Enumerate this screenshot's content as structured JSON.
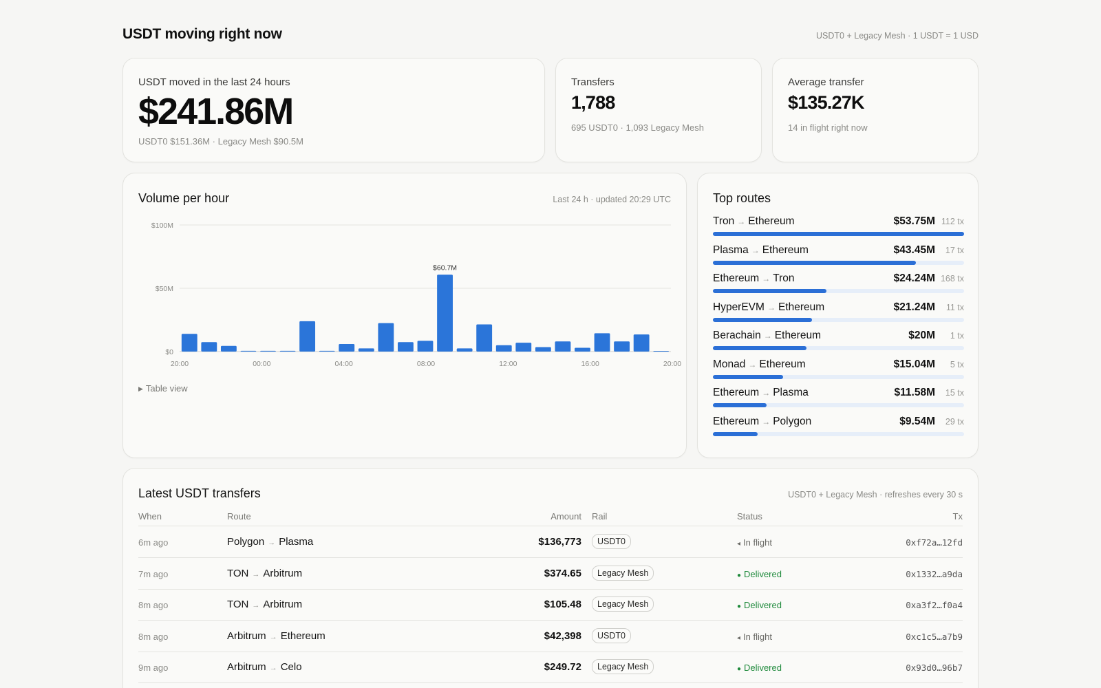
{
  "header": {
    "title": "USDT moving right now",
    "meta": "USDT0 + Legacy Mesh · 1 USDT = 1 USD"
  },
  "kpis": {
    "moved": {
      "label": "USDT moved in the last 24 hours",
      "value": "$241.86M",
      "sub": "USDT0 $151.36M · Legacy Mesh $90.5M"
    },
    "transfers": {
      "label": "Transfers",
      "value": "1,788",
      "sub": "695 USDT0 · 1,093 Legacy Mesh"
    },
    "average": {
      "label": "Average transfer",
      "value": "$135.27K",
      "sub": "14 in flight right now"
    }
  },
  "volume": {
    "title": "Volume per hour",
    "meta": "Last 24 h · updated 20:29 UTC",
    "table_view": "Table view"
  },
  "chart_data": {
    "type": "bar",
    "title": "Volume per hour",
    "y_ticks": [
      "$100M",
      "$50M",
      "$0"
    ],
    "y_tick_values": [
      100,
      50,
      0
    ],
    "ylim": [
      0,
      100
    ],
    "x_ticks": [
      "20:00",
      "00:00",
      "04:00",
      "08:00",
      "12:00",
      "16:00",
      "20:00"
    ],
    "ylabel": "",
    "xlabel": "",
    "unit": "$M",
    "peak_label": "$60.7M",
    "peak_index": 13,
    "values": [
      14,
      7.5,
      4.5,
      0.6,
      0.6,
      0.6,
      24,
      0.6,
      6,
      2.5,
      22.5,
      7.5,
      8.5,
      60.7,
      2.5,
      21.5,
      5,
      7,
      3.5,
      8,
      3,
      14.5,
      8,
      13.5,
      0.4
    ],
    "color": "#2b75d9"
  },
  "routes": {
    "title": "Top routes",
    "items": [
      {
        "from": "Tron",
        "to": "Ethereum",
        "amount": "$53.75M",
        "tx": "112 tx",
        "share": 1.0
      },
      {
        "from": "Plasma",
        "to": "Ethereum",
        "amount": "$43.45M",
        "tx": "17 tx",
        "share": 0.808
      },
      {
        "from": "Ethereum",
        "to": "Tron",
        "amount": "$24.24M",
        "tx": "168 tx",
        "share": 0.451
      },
      {
        "from": "HyperEVM",
        "to": "Ethereum",
        "amount": "$21.24M",
        "tx": "11 tx",
        "share": 0.395
      },
      {
        "from": "Berachain",
        "to": "Ethereum",
        "amount": "$20M",
        "tx": "1 tx",
        "share": 0.372
      },
      {
        "from": "Monad",
        "to": "Ethereum",
        "amount": "$15.04M",
        "tx": "5 tx",
        "share": 0.28
      },
      {
        "from": "Ethereum",
        "to": "Plasma",
        "amount": "$11.58M",
        "tx": "15 tx",
        "share": 0.215
      },
      {
        "from": "Ethereum",
        "to": "Polygon",
        "amount": "$9.54M",
        "tx": "29 tx",
        "share": 0.177
      }
    ]
  },
  "latest": {
    "title": "Latest USDT transfers",
    "meta": "USDT0 + Legacy Mesh · refreshes every 30 s",
    "columns": {
      "when": "When",
      "route": "Route",
      "amount": "Amount",
      "rail": "Rail",
      "status": "Status",
      "tx": "Tx"
    },
    "rows": [
      {
        "when": "6m ago",
        "from": "Polygon",
        "to": "Plasma",
        "amount": "$136,773",
        "rail": "USDT0",
        "status": "In flight",
        "status_kind": "flight",
        "tx": "0xf72a…12fd"
      },
      {
        "when": "7m ago",
        "from": "TON",
        "to": "Arbitrum",
        "amount": "$374.65",
        "rail": "Legacy Mesh",
        "status": "Delivered",
        "status_kind": "delivered",
        "tx": "0x1332…a9da"
      },
      {
        "when": "8m ago",
        "from": "TON",
        "to": "Arbitrum",
        "amount": "$105.48",
        "rail": "Legacy Mesh",
        "status": "Delivered",
        "status_kind": "delivered",
        "tx": "0xa3f2…f0a4"
      },
      {
        "when": "8m ago",
        "from": "Arbitrum",
        "to": "Ethereum",
        "amount": "$42,398",
        "rail": "USDT0",
        "status": "In flight",
        "status_kind": "flight",
        "tx": "0xc1c5…a7b9"
      },
      {
        "when": "9m ago",
        "from": "Arbitrum",
        "to": "Celo",
        "amount": "$249.72",
        "rail": "Legacy Mesh",
        "status": "Delivered",
        "status_kind": "delivered",
        "tx": "0x93d0…96b7"
      }
    ]
  },
  "symbols": {
    "arrow": "→",
    "delivered_dot": "●",
    "flight_dot": "◂",
    "disclosure": "▶"
  },
  "colors": {
    "accent": "#2b75d9",
    "delivered": "#1f8a3c",
    "track": "#e6eef9"
  }
}
